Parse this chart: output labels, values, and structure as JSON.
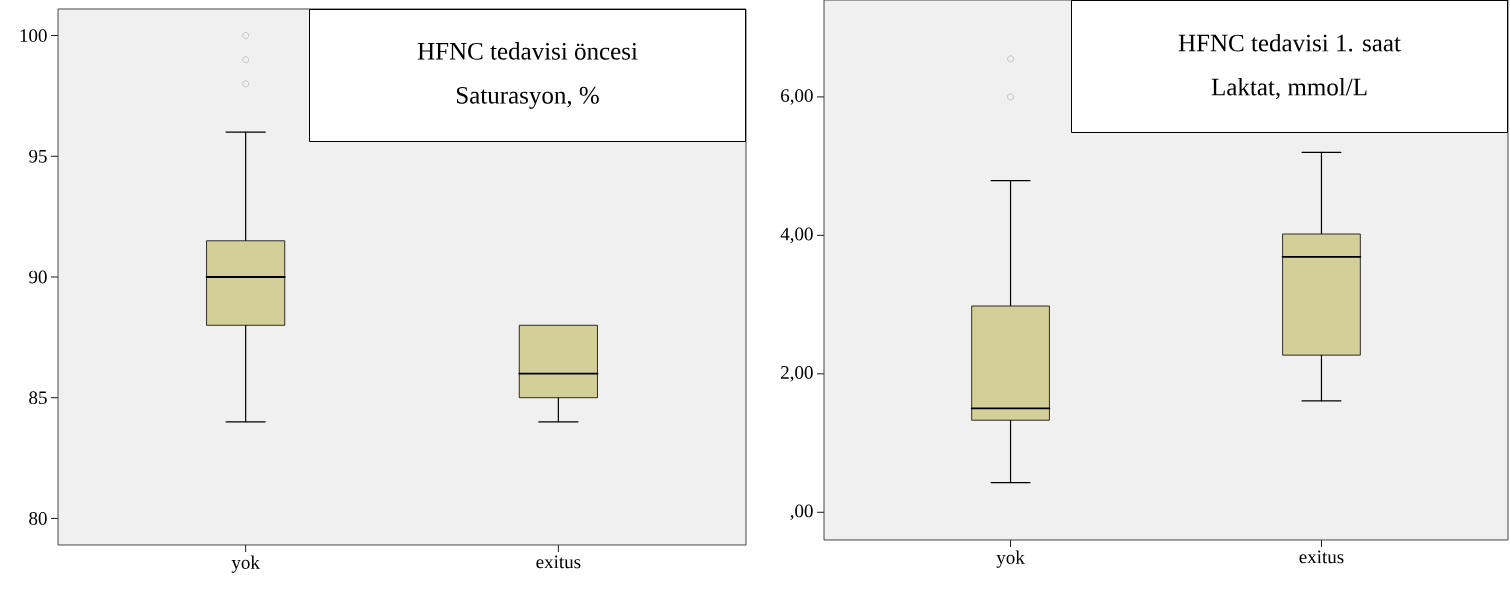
{
  "chart_data": [
    {
      "type": "box",
      "title": "HFNC tedavisi öncesi",
      "subtitle": "Saturasyon, %",
      "categories": [
        "yok",
        "exitus"
      ],
      "color": "#d4cf98",
      "ylim": [
        78.9,
        101.1
      ],
      "yticks": [
        80,
        85,
        90,
        95,
        100
      ],
      "boxes": [
        {
          "low": 84,
          "q1": 88,
          "median": 90,
          "q3": 91.5,
          "high": 96,
          "outliers": [
            98,
            99,
            100
          ]
        },
        {
          "low": 84,
          "q1": 85,
          "median": 86,
          "q3": 88,
          "high": 88
        }
      ]
    },
    {
      "type": "box",
      "title": "HFNC tedavisi 1. saat",
      "subtitle": "Laktat, mmol/L",
      "categories": [
        "yok",
        "exitus"
      ],
      "color": "#d4cf98",
      "ylim": [
        -0.4,
        7.4
      ],
      "yticks": [
        {
          "value": 0,
          "label": ",00"
        },
        {
          "value": 2,
          "label": "2,00"
        },
        {
          "value": 4,
          "label": "4,00"
        },
        {
          "value": 6,
          "label": "6,00"
        }
      ],
      "boxes": [
        {
          "low": 0.43,
          "q1": 1.33,
          "median": 1.5,
          "q3": 2.98,
          "high": 4.79,
          "outliers": [
            6.0,
            6.55
          ]
        },
        {
          "low": 1.61,
          "q1": 2.27,
          "median": 3.69,
          "q3": 4.02,
          "high": 5.2
        }
      ]
    }
  ]
}
